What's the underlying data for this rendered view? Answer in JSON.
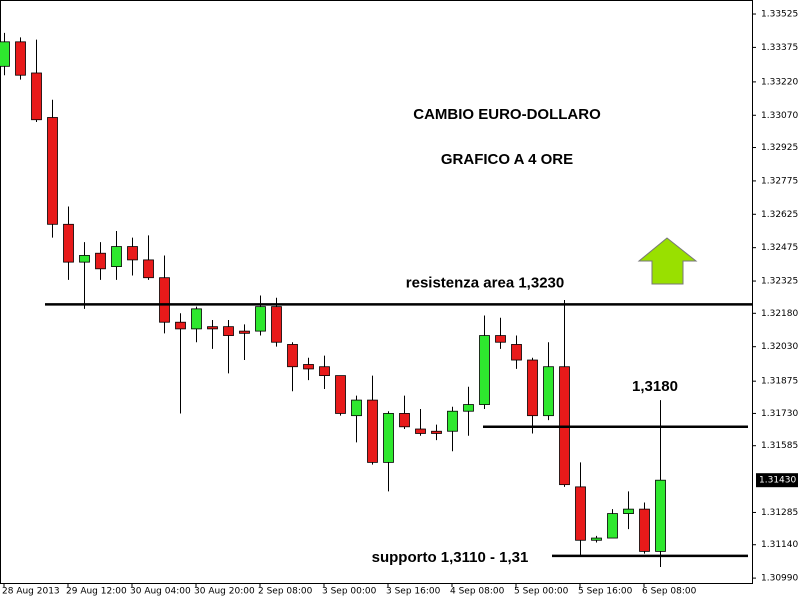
{
  "chart_data": {
    "type": "candlestick",
    "title": "CAMBIO EURO-DOLLARO",
    "subtitle": "GRAFICO A 4 ORE",
    "categories": [
      "28 Aug 2013",
      null,
      null,
      null,
      "29 Aug 12:00",
      null,
      null,
      null,
      "30 Aug 04:00",
      null,
      null,
      null,
      "30 Aug 20:00",
      null,
      null,
      null,
      "2 Sep 08:00",
      null,
      null,
      null,
      "3 Sep 00:00",
      null,
      null,
      null,
      "3 Sep 16:00",
      null,
      null,
      null,
      "4 Sep 08:00",
      null,
      null,
      null,
      "5 Sep 00:00",
      null,
      null,
      null,
      "5 Sep 16:00",
      null,
      null,
      null,
      "6 Sep 08:00",
      null
    ],
    "open": [
      1.3329,
      1.334,
      1.3326,
      1.3306,
      1.3258,
      1.3241,
      1.3245,
      1.3239,
      1.3248,
      1.3242,
      1.3234,
      1.3214,
      1.3211,
      1.3212,
      1.3212,
      1.321,
      1.321,
      1.3221,
      1.3204,
      1.3195,
      1.3194,
      1.319,
      1.3172,
      1.3179,
      1.3151,
      1.3173,
      1.3166,
      1.3165,
      1.3165,
      1.3174,
      1.3177,
      1.3208,
      1.3204,
      1.3197,
      1.3172,
      1.3194,
      1.314,
      1.3116,
      1.3117,
      1.3128,
      1.313,
      1.3111
    ],
    "high": [
      1.3344,
      1.3342,
      1.3341,
      1.3314,
      1.3266,
      1.325,
      1.325,
      1.3255,
      1.3252,
      1.3253,
      1.3244,
      1.3218,
      1.3221,
      1.3215,
      1.3215,
      1.3213,
      1.3226,
      1.3225,
      1.3205,
      1.3198,
      1.3199,
      1.319,
      1.3181,
      1.319,
      1.3174,
      1.3181,
      1.3175,
      1.3168,
      1.3176,
      1.3185,
      1.3217,
      1.3216,
      1.3208,
      1.3198,
      1.3205,
      1.3224,
      1.3151,
      1.3118,
      1.313,
      1.3138,
      1.3133,
      1.3179
    ],
    "low": [
      1.3325,
      1.3323,
      1.3304,
      1.3252,
      1.3233,
      1.322,
      1.3233,
      1.3233,
      1.3235,
      1.3233,
      1.3209,
      1.3173,
      1.3205,
      1.3202,
      1.3191,
      1.3197,
      1.3208,
      1.3203,
      1.3183,
      1.3188,
      1.3184,
      1.3172,
      1.316,
      1.315,
      1.3138,
      1.3166,
      1.3163,
      1.3161,
      1.3156,
      1.3163,
      1.3175,
      1.3202,
      1.3193,
      1.3164,
      1.317,
      1.314,
      1.3109,
      1.3115,
      1.3117,
      1.3121,
      1.311,
      1.3104
    ],
    "close": [
      1.334,
      1.3325,
      1.3305,
      1.3258,
      1.3241,
      1.3244,
      1.3238,
      1.3248,
      1.3242,
      1.3234,
      1.3214,
      1.3211,
      1.322,
      1.3211,
      1.3208,
      1.3209,
      1.3221,
      1.3205,
      1.3194,
      1.3193,
      1.319,
      1.3173,
      1.3179,
      1.3151,
      1.3173,
      1.3167,
      1.3164,
      1.3164,
      1.3174,
      1.3177,
      1.3208,
      1.3205,
      1.3197,
      1.3172,
      1.3194,
      1.3141,
      1.3116,
      1.3117,
      1.3128,
      1.313,
      1.3111,
      1.3143
    ],
    "up_color": "#2ee82e",
    "down_color": "#e81a1a",
    "ylim": [
      1.30968,
      1.33588
    ],
    "yticks": [
      1.33525,
      1.33375,
      {
        "value": 1.3322,
        "label": "1.33220"
      },
      {
        "value": 1.3307,
        "label": "1.33070"
      },
      1.32925,
      1.32775,
      1.32625,
      1.32475,
      1.32325,
      {
        "value": 1.3218,
        "label": "1.32180"
      },
      {
        "value": 1.3203,
        "label": "1.32030"
      },
      1.31875,
      {
        "value": 1.3173,
        "label": "1.31730"
      },
      1.31585,
      1.31285,
      {
        "value": 1.3114,
        "label": "1.31140"
      },
      {
        "value": 1.3099,
        "label": "1.30990"
      }
    ],
    "last_price": {
      "value": 1.3143,
      "label": "1.31430"
    },
    "lines": [
      {
        "value": 1.3222,
        "label": "resistenza area 1,3230"
      },
      {
        "value": 1.3167,
        "label": "1,3180"
      },
      {
        "value": 1.3109,
        "label": "supporto 1,3110 - 1,31"
      }
    ],
    "grid": false
  }
}
